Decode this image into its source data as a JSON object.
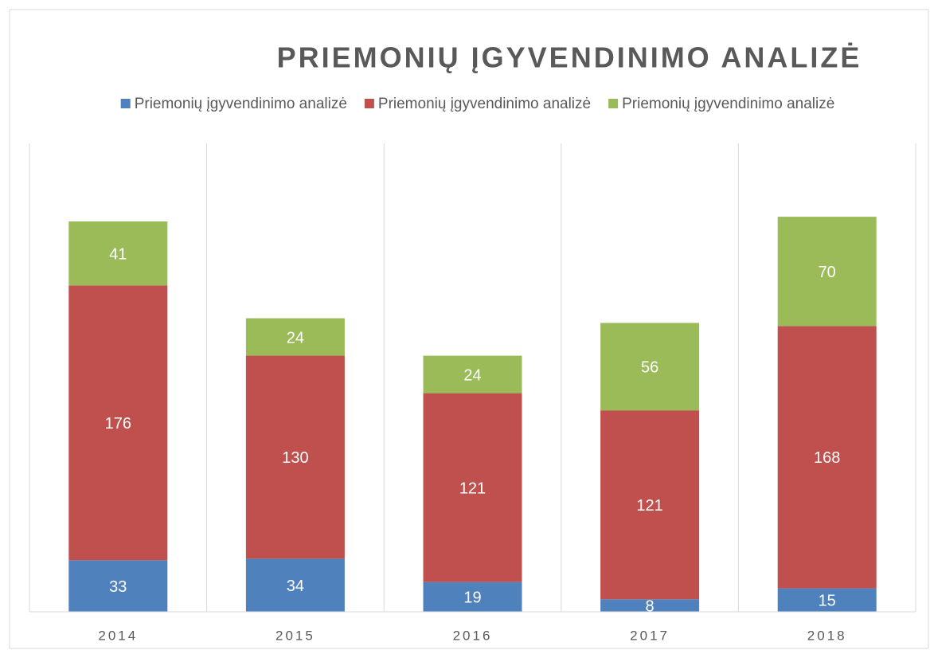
{
  "chart_data": {
    "type": "stacked_bar",
    "title": "PRIEMONIŲ ĮGYVENDINIMO ANALIZĖ",
    "categories": [
      "2014",
      "2015",
      "2016",
      "2017",
      "2018"
    ],
    "series": [
      {
        "name": "Priemonių įgyvendinimo analizė",
        "color": "#4f81bd",
        "values": [
          33,
          34,
          19,
          8,
          15
        ]
      },
      {
        "name": "Priemonių įgyvendinimo analizė",
        "color": "#c0504d",
        "values": [
          176,
          130,
          121,
          121,
          168
        ]
      },
      {
        "name": "Priemonių įgyvendinimo analizė",
        "color": "#9bbb59",
        "values": [
          41,
          24,
          24,
          56,
          70
        ]
      }
    ],
    "ylim": [
      0,
      300
    ],
    "legend": "top"
  }
}
